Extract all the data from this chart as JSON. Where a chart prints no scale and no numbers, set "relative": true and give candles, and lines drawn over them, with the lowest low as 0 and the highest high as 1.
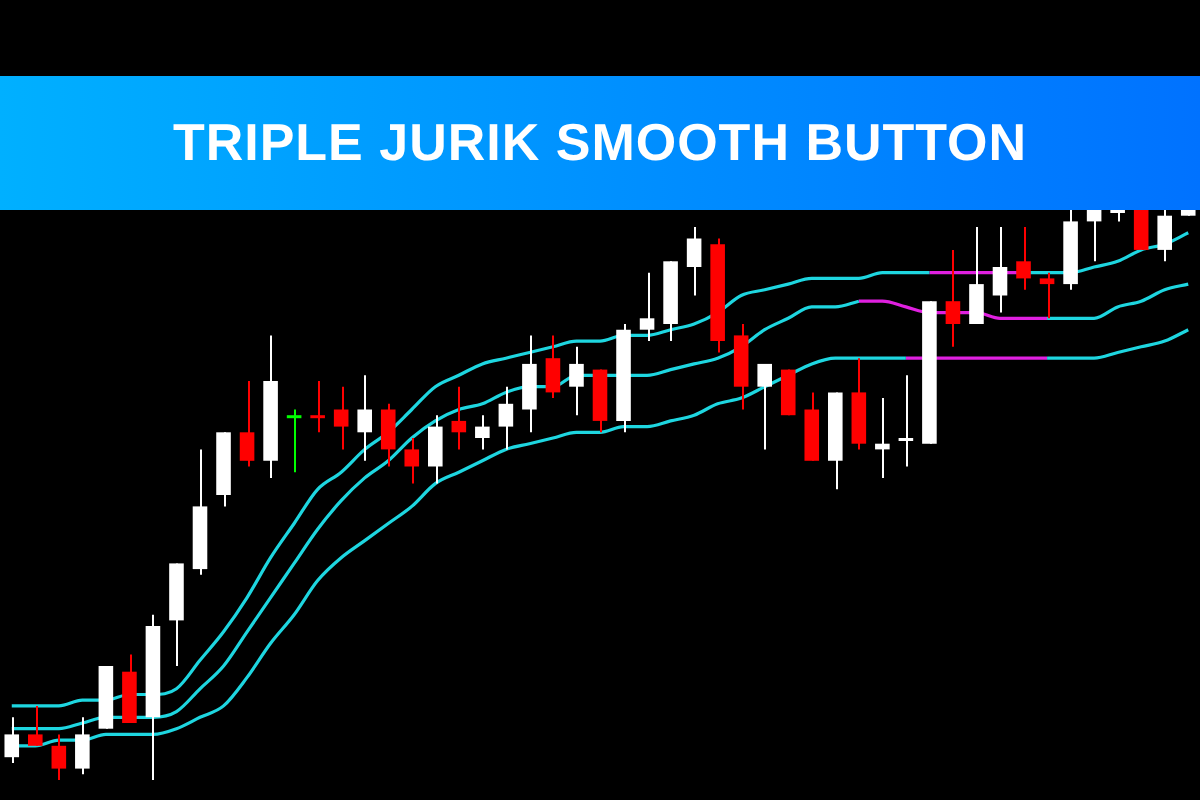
{
  "chart_data": {
    "type": "candlestick",
    "title": "TRIPLE JURIK SMOOTH BUTTON",
    "relative": true,
    "categories": [
      null,
      null,
      null,
      null,
      null,
      null,
      null,
      null,
      null,
      null,
      null,
      null,
      null,
      null,
      null,
      null,
      null,
      null,
      null,
      null,
      null,
      null,
      null,
      null,
      null,
      null,
      null,
      null,
      null,
      null,
      null,
      null,
      null,
      null,
      null,
      null,
      null,
      null,
      null,
      null,
      null,
      null,
      null,
      null,
      null,
      null,
      null,
      null,
      null,
      null,
      null
    ],
    "ohlc": [
      [
        0.04,
        0.11,
        0.03,
        0.08
      ],
      [
        0.08,
        0.13,
        0.06,
        0.06
      ],
      [
        0.06,
        0.08,
        0,
        0.02
      ],
      [
        0.02,
        0.11,
        0.01,
        0.08
      ],
      [
        0.09,
        0.2,
        0.09,
        0.2
      ],
      [
        0.19,
        0.22,
        0.1,
        0.1
      ],
      [
        0.11,
        0.29,
        0,
        0.27
      ],
      [
        0.28,
        0.38,
        0.2,
        0.38
      ],
      [
        0.37,
        0.58,
        0.36,
        0.48
      ],
      [
        0.5,
        0.61,
        0.48,
        0.61
      ],
      [
        0.61,
        0.7,
        0.55,
        0.56
      ],
      [
        0.56,
        0.78,
        0.53,
        0.7
      ],
      [
        0.64,
        0.65,
        0.54,
        0.64
      ],
      [
        0.64,
        0.7,
        0.61,
        0.64
      ],
      [
        0.65,
        0.69,
        0.58,
        0.62
      ],
      [
        0.61,
        0.71,
        0.56,
        0.65
      ],
      [
        0.65,
        0.66,
        0.55,
        0.58
      ],
      [
        0.58,
        0.6,
        0.52,
        0.55
      ],
      [
        0.55,
        0.64,
        0.52,
        0.62
      ],
      [
        0.63,
        0.69,
        0.58,
        0.61
      ],
      [
        0.6,
        0.64,
        0.58,
        0.62
      ],
      [
        0.62,
        0.69,
        0.58,
        0.66
      ],
      [
        0.65,
        0.78,
        0.61,
        0.73
      ],
      [
        0.74,
        0.78,
        0.67,
        0.68
      ],
      [
        0.69,
        0.76,
        0.64,
        0.73
      ],
      [
        0.72,
        0.72,
        0.61,
        0.63
      ],
      [
        0.63,
        0.8,
        0.61,
        0.79
      ],
      [
        0.79,
        0.89,
        0.77,
        0.81
      ],
      [
        0.8,
        0.91,
        0.77,
        0.91
      ],
      [
        0.9,
        0.97,
        0.85,
        0.95
      ],
      [
        0.94,
        0.95,
        0.75,
        0.77
      ],
      [
        0.78,
        0.8,
        0.65,
        0.69
      ],
      [
        0.69,
        0.73,
        0.58,
        0.73
      ],
      [
        0.72,
        0.72,
        0.64,
        0.64
      ],
      [
        0.65,
        0.68,
        0.56,
        0.56
      ],
      [
        0.56,
        0.68,
        0.51,
        0.68
      ],
      [
        0.68,
        0.74,
        0.58,
        0.59
      ],
      [
        0.58,
        0.67,
        0.53,
        0.59
      ],
      [
        0.6,
        0.71,
        0.55,
        0.6
      ],
      [
        0.59,
        0.84,
        0.59,
        0.84
      ],
      [
        0.84,
        0.93,
        0.76,
        0.8
      ],
      [
        0.8,
        0.97,
        0.8,
        0.87
      ],
      [
        0.85,
        0.97,
        0.82,
        0.9
      ],
      [
        0.91,
        0.97,
        0.86,
        0.88
      ],
      [
        0.88,
        0.89,
        0.81,
        0.87
      ],
      [
        0.87,
        1,
        0.86,
        0.98
      ],
      [
        0.98,
        1,
        0.91,
        1
      ],
      [
        1,
        1,
        0.98,
        1
      ],
      [
        1,
        1,
        0.93,
        0.93
      ],
      [
        0.93,
        1,
        0.91,
        0.99
      ],
      [
        0.99,
        1,
        0.99,
        1
      ]
    ],
    "colors": [
      "#ffffff",
      "#ff0000",
      "#ff0000",
      "#ffffff",
      "#ffffff",
      "#ff0000",
      "#ffffff",
      "#ffffff",
      "#ffffff",
      "#ffffff",
      "#ff0000",
      "#ffffff",
      "#00ff00",
      "#ff0000",
      "#ff0000",
      "#ffffff",
      "#ff0000",
      "#ff0000",
      "#ffffff",
      "#ff0000",
      "#ffffff",
      "#ffffff",
      "#ffffff",
      "#ff0000",
      "#ffffff",
      "#ff0000",
      "#ffffff",
      "#ffffff",
      "#ffffff",
      "#ffffff",
      "#ff0000",
      "#ff0000",
      "#ffffff",
      "#ff0000",
      "#ff0000",
      "#ffffff",
      "#ff0000",
      "#ffffff",
      "#ffffff",
      "#ffffff",
      "#ff0000",
      "#ffffff",
      "#ffffff",
      "#ff0000",
      "#ff0000",
      "#ffffff",
      "#ffffff",
      "#ffffff",
      "#ff0000",
      "#ffffff",
      "#ffffff"
    ],
    "series": [
      {
        "type": "line",
        "color": "#1ed6e0",
        "values": [
          0.13,
          0.13,
          0.13,
          0.14,
          0.14,
          0.15,
          0.15,
          0.16,
          0.21,
          0.26,
          0.32,
          0.39,
          0.45,
          0.51,
          0.54,
          0.58,
          0.61,
          0.65,
          0.69,
          0.71,
          0.73,
          0.74,
          0.75,
          0.76,
          0.77,
          0.77,
          0.78,
          0.78,
          0.79,
          0.8,
          0.82,
          0.85,
          0.86,
          0.87,
          0.88,
          0.88,
          0.88,
          0.89,
          0.89,
          0.89,
          null,
          null,
          null,
          0.89,
          0.89,
          0.89,
          0.9,
          0.91,
          0.93,
          0.94,
          0.96
        ]
      },
      {
        "type": "line",
        "color": "#e020e0",
        "values": [
          null,
          null,
          null,
          null,
          null,
          null,
          null,
          null,
          null,
          null,
          null,
          null,
          null,
          null,
          null,
          null,
          null,
          null,
          null,
          null,
          null,
          null,
          null,
          null,
          null,
          null,
          null,
          null,
          null,
          null,
          null,
          null,
          null,
          null,
          null,
          null,
          null,
          null,
          null,
          0.89,
          0.89,
          0.89,
          0.89,
          0.89,
          null,
          null,
          null,
          null,
          null,
          null,
          null
        ]
      },
      {
        "type": "line",
        "color": "#1ed6e0",
        "values": [
          0.09,
          0.09,
          0.09,
          0.1,
          0.11,
          0.11,
          0.11,
          0.12,
          0.16,
          0.2,
          0.26,
          0.32,
          0.38,
          0.44,
          0.49,
          0.53,
          0.56,
          0.6,
          0.63,
          0.65,
          0.66,
          0.68,
          0.69,
          0.69,
          0.71,
          0.71,
          0.71,
          0.71,
          0.72,
          0.73,
          0.74,
          0.76,
          0.79,
          0.81,
          0.83,
          0.83,
          0.84,
          null,
          null,
          null,
          null,
          null,
          null,
          null,
          0.81,
          0.81,
          0.81,
          0.83,
          0.84,
          0.86,
          0.87
        ]
      },
      {
        "type": "line",
        "color": "#e020e0",
        "values": [
          null,
          null,
          null,
          null,
          null,
          null,
          null,
          null,
          null,
          null,
          null,
          null,
          null,
          null,
          null,
          null,
          null,
          null,
          null,
          null,
          null,
          null,
          null,
          null,
          null,
          null,
          null,
          null,
          null,
          null,
          null,
          null,
          null,
          null,
          null,
          null,
          0.84,
          0.84,
          0.83,
          0.82,
          0.82,
          0.82,
          0.81,
          0.81,
          0.81,
          null,
          null,
          null,
          null,
          null,
          null
        ]
      },
      {
        "type": "line",
        "color": "#1ed6e0",
        "values": [
          0.06,
          0.06,
          0.07,
          0.07,
          0.08,
          0.08,
          0.08,
          0.09,
          0.11,
          0.13,
          0.18,
          0.24,
          0.29,
          0.35,
          0.39,
          0.42,
          0.45,
          0.48,
          0.52,
          0.54,
          0.56,
          0.58,
          0.59,
          0.6,
          0.61,
          0.61,
          0.62,
          0.62,
          0.63,
          0.64,
          0.66,
          0.67,
          0.69,
          0.71,
          0.73,
          0.74,
          0.74,
          0.74,
          0.74,
          null,
          null,
          null,
          null,
          null,
          0.74,
          0.74,
          0.74,
          0.75,
          0.76,
          0.77,
          0.79
        ]
      },
      {
        "type": "line",
        "color": "#e020e0",
        "values": [
          null,
          null,
          null,
          null,
          null,
          null,
          null,
          null,
          null,
          null,
          null,
          null,
          null,
          null,
          null,
          null,
          null,
          null,
          null,
          null,
          null,
          null,
          null,
          null,
          null,
          null,
          null,
          null,
          null,
          null,
          null,
          null,
          null,
          null,
          null,
          null,
          null,
          null,
          0.74,
          0.74,
          0.74,
          0.74,
          0.74,
          0.74,
          0.74,
          null,
          null,
          null,
          null,
          null,
          null
        ]
      }
    ]
  }
}
